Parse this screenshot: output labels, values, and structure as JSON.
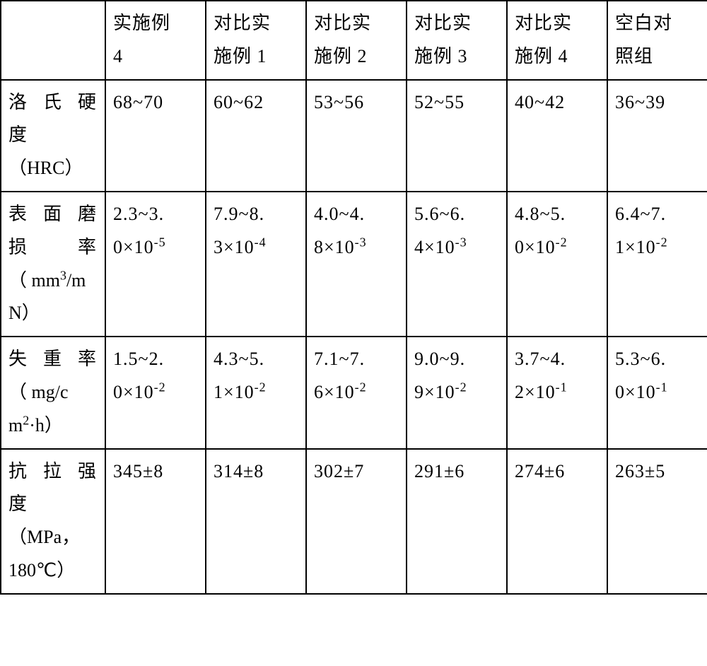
{
  "table": {
    "type": "table",
    "columns": 7,
    "rows": 5,
    "border_color": "#000000",
    "background_color": "#ffffff",
    "text_color": "#000000",
    "font_family": "SimSun",
    "font_size": 26,
    "header": {
      "col0": "",
      "col1_line1": "实施例",
      "col1_line2": "4",
      "col2_line1": "对比实",
      "col2_line2": "施例 1",
      "col3_line1": "对比实",
      "col3_line2": "施例 2",
      "col4_line1": "对比实",
      "col4_line2": "施例 3",
      "col5_line1": "对比实",
      "col5_line2": "施例 4",
      "col6_line1": "空白对",
      "col6_line2": "照组"
    },
    "row1": {
      "label_line1": "洛氏硬",
      "label_line2": "度",
      "label_line3": "（HRC）",
      "col1": "68~70",
      "col2": "60~62",
      "col3": "53~56",
      "col4": "52~55",
      "col5": "40~42",
      "col6": "36~39"
    },
    "row2": {
      "label_line1": "表面磨",
      "label_line2": "损　率",
      "label_line3a": "（ mm",
      "label_line3_sup": "3",
      "label_line3b": "/m",
      "label_line4": "N）",
      "col1_line1": "2.3~3.",
      "col1_line2a": "0×10",
      "col1_line2_sup": "-5",
      "col2_line1": "7.9~8.",
      "col2_line2a": "3×10",
      "col2_line2_sup": "-4",
      "col3_line1": "4.0~4.",
      "col3_line2a": "8×10",
      "col3_line2_sup": "-3",
      "col4_line1": "5.6~6.",
      "col4_line2a": "4×10",
      "col4_line2_sup": "-3",
      "col5_line1": "4.8~5.",
      "col5_line2a": "0×10",
      "col5_line2_sup": "-2",
      "col6_line1": "6.4~7.",
      "col6_line2a": "1×10",
      "col6_line2_sup": "-2"
    },
    "row3": {
      "label_line1": "失重率",
      "label_line2": "（ mg/c",
      "label_line3a": "m",
      "label_line3_sup": "2",
      "label_line3b": "·h）",
      "col1_line1": "1.5~2.",
      "col1_line2a": "0×10",
      "col1_line2_sup": "-2",
      "col2_line1": "4.3~5.",
      "col2_line2a": "1×10",
      "col2_line2_sup": "-2",
      "col3_line1": "7.1~7.",
      "col3_line2a": "6×10",
      "col3_line2_sup": "-2",
      "col4_line1": "9.0~9.",
      "col4_line2a": "9×10",
      "col4_line2_sup": "-2",
      "col5_line1": "3.7~4.",
      "col5_line2a": "2×10",
      "col5_line2_sup": "-1",
      "col6_line1": "5.3~6.",
      "col6_line2a": "0×10",
      "col6_line2_sup": "-1"
    },
    "row4": {
      "label_line1": "抗拉强",
      "label_line2": "度",
      "label_line3": "（MPa，",
      "label_line4": "180℃）",
      "col1": "345±8",
      "col2": "314±8",
      "col3": "302±7",
      "col4": "291±6",
      "col5": "274±6",
      "col6": "263±5"
    }
  }
}
